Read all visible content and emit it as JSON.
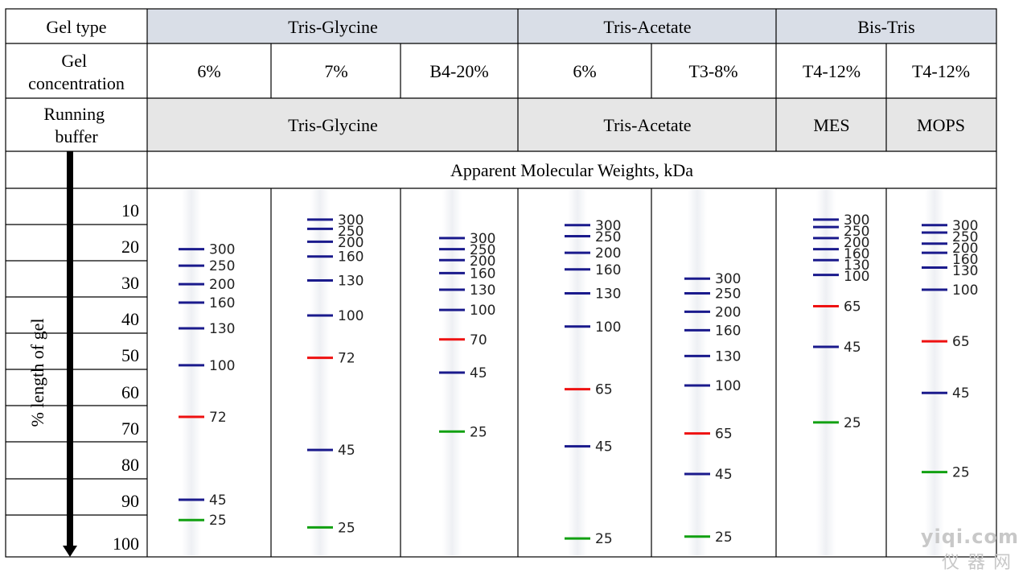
{
  "table": {
    "row_headers": {
      "gel_type": "Gel type",
      "gel_concentration": [
        "Gel",
        "concentration"
      ],
      "running_buffer": [
        "Running",
        "buffer"
      ]
    },
    "gel_types": [
      "Tris-Glycine",
      "Tris-Acetate",
      "Bis-Tris"
    ],
    "concentrations": [
      "6%",
      "7%",
      "B4-20%",
      "6%",
      "T3-8%",
      "T4-12%",
      "T4-12%"
    ],
    "running_buffers": [
      "Tris-Glycine",
      "Tris-Acetate",
      "MES",
      "MOPS"
    ],
    "weights_header": "Apparent Molecular Weights, kDa",
    "axis_label": "% length of gel",
    "scale_ticks": [
      "10",
      "20",
      "30",
      "40",
      "50",
      "60",
      "70",
      "80",
      "90",
      "100"
    ]
  },
  "band_colors": {
    "blue": "#1a1a8c",
    "red": "#ee1111",
    "green": "#11a011"
  },
  "chart_data": {
    "type": "diagram",
    "y_axis": "% length of gel",
    "lanes": [
      {
        "bands": [
          {
            "kda": "300",
            "pos": 16.5,
            "color": "blue"
          },
          {
            "kda": "250",
            "pos": 21,
            "color": "blue"
          },
          {
            "kda": "200",
            "pos": 26,
            "color": "blue"
          },
          {
            "kda": "160",
            "pos": 31,
            "color": "blue"
          },
          {
            "kda": "130",
            "pos": 38,
            "color": "blue"
          },
          {
            "kda": "100",
            "pos": 48,
            "color": "blue"
          },
          {
            "kda": "72",
            "pos": 62,
            "color": "red"
          },
          {
            "kda": "45",
            "pos": 84.5,
            "color": "blue"
          },
          {
            "kda": "25",
            "pos": 90,
            "color": "green"
          }
        ]
      },
      {
        "bands": [
          {
            "kda": "300",
            "pos": 8.5,
            "color": "blue"
          },
          {
            "kda": "250",
            "pos": 11,
            "color": "blue"
          },
          {
            "kda": "200",
            "pos": 14.5,
            "color": "blue"
          },
          {
            "kda": "160",
            "pos": 18.5,
            "color": "blue"
          },
          {
            "kda": "130",
            "pos": 25,
            "color": "blue"
          },
          {
            "kda": "100",
            "pos": 34.5,
            "color": "blue"
          },
          {
            "kda": "72",
            "pos": 46,
            "color": "red"
          },
          {
            "kda": "45",
            "pos": 71,
            "color": "blue"
          },
          {
            "kda": "25",
            "pos": 92,
            "color": "green"
          }
        ]
      },
      {
        "bands": [
          {
            "kda": "300",
            "pos": 13.5,
            "color": "blue"
          },
          {
            "kda": "250",
            "pos": 16.5,
            "color": "blue"
          },
          {
            "kda": "200",
            "pos": 19.5,
            "color": "blue"
          },
          {
            "kda": "160",
            "pos": 23,
            "color": "blue"
          },
          {
            "kda": "130",
            "pos": 27.5,
            "color": "blue"
          },
          {
            "kda": "100",
            "pos": 33,
            "color": "blue"
          },
          {
            "kda": "70",
            "pos": 41,
            "color": "red"
          },
          {
            "kda": "45",
            "pos": 50,
            "color": "blue"
          },
          {
            "kda": "25",
            "pos": 66,
            "color": "green"
          }
        ]
      },
      {
        "bands": [
          {
            "kda": "300",
            "pos": 10,
            "color": "blue"
          },
          {
            "kda": "250",
            "pos": 13,
            "color": "blue"
          },
          {
            "kda": "200",
            "pos": 17.5,
            "color": "blue"
          },
          {
            "kda": "160",
            "pos": 22,
            "color": "blue"
          },
          {
            "kda": "130",
            "pos": 28.5,
            "color": "blue"
          },
          {
            "kda": "100",
            "pos": 37.5,
            "color": "blue"
          },
          {
            "kda": "65",
            "pos": 54.5,
            "color": "red"
          },
          {
            "kda": "45",
            "pos": 70,
            "color": "blue"
          },
          {
            "kda": "25",
            "pos": 95,
            "color": "green"
          }
        ]
      },
      {
        "bands": [
          {
            "kda": "300",
            "pos": 24.5,
            "color": "blue"
          },
          {
            "kda": "250",
            "pos": 28.5,
            "color": "blue"
          },
          {
            "kda": "200",
            "pos": 33.5,
            "color": "blue"
          },
          {
            "kda": "160",
            "pos": 38.5,
            "color": "blue"
          },
          {
            "kda": "130",
            "pos": 45.5,
            "color": "blue"
          },
          {
            "kda": "100",
            "pos": 53.5,
            "color": "blue"
          },
          {
            "kda": "65",
            "pos": 66.5,
            "color": "red"
          },
          {
            "kda": "45",
            "pos": 77.5,
            "color": "blue"
          },
          {
            "kda": "25",
            "pos": 94.5,
            "color": "green"
          }
        ]
      },
      {
        "bands": [
          {
            "kda": "300",
            "pos": 8.5,
            "color": "blue"
          },
          {
            "kda": "250",
            "pos": 10.5,
            "color": "blue"
          },
          {
            "kda": "200",
            "pos": 13.5,
            "color": "blue"
          },
          {
            "kda": "160",
            "pos": 16.5,
            "color": "blue"
          },
          {
            "kda": "130",
            "pos": 19.5,
            "color": "blue"
          },
          {
            "kda": "100",
            "pos": 23.5,
            "color": "blue"
          },
          {
            "kda": "65",
            "pos": 32,
            "color": "red"
          },
          {
            "kda": "45",
            "pos": 43,
            "color": "blue"
          },
          {
            "kda": "25",
            "pos": 63.5,
            "color": "green"
          }
        ]
      },
      {
        "bands": [
          {
            "kda": "300",
            "pos": 10,
            "color": "blue"
          },
          {
            "kda": "250",
            "pos": 12,
            "color": "blue"
          },
          {
            "kda": "200",
            "pos": 15,
            "color": "blue"
          },
          {
            "kda": "160",
            "pos": 17.5,
            "color": "blue"
          },
          {
            "kda": "130",
            "pos": 21.5,
            "color": "blue"
          },
          {
            "kda": "100",
            "pos": 27.5,
            "color": "blue"
          },
          {
            "kda": "65",
            "pos": 41.5,
            "color": "red"
          },
          {
            "kda": "45",
            "pos": 55.5,
            "color": "blue"
          },
          {
            "kda": "25",
            "pos": 77,
            "color": "green"
          }
        ]
      }
    ]
  },
  "watermark": {
    "line1": "yiqi.com",
    "line2": "仪器网"
  }
}
